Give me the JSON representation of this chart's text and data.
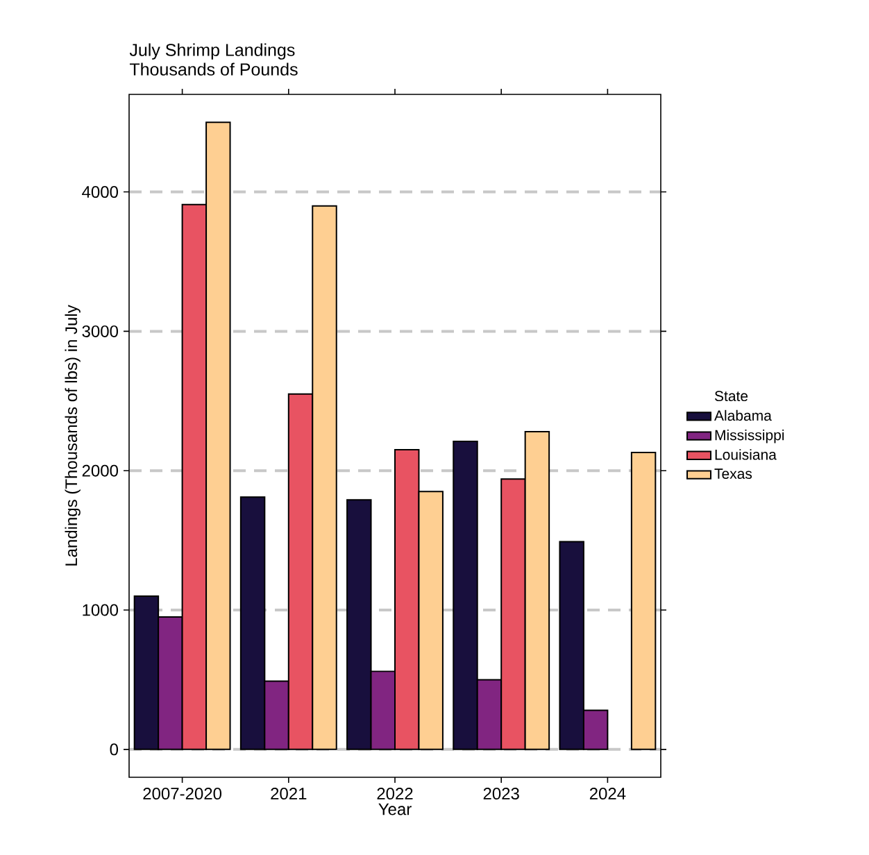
{
  "chart_data": {
    "type": "bar",
    "title": "July Shrimp Landings",
    "subtitle": "Thousands of Pounds",
    "xlabel": "Year",
    "ylabel": "Landings (Thousands of lbs) in July",
    "legend_title": "State",
    "categories": [
      "2007-2020",
      "2021",
      "2022",
      "2023",
      "2024"
    ],
    "series": [
      {
        "name": "Alabama",
        "color": "#180f3d",
        "values": [
          1100,
          1810,
          1790,
          2210,
          1490
        ]
      },
      {
        "name": "Mississippi",
        "color": "#812581",
        "values": [
          950,
          490,
          560,
          500,
          280
        ]
      },
      {
        "name": "Louisiana",
        "color": "#e85362",
        "values": [
          3910,
          2550,
          2150,
          1940,
          null
        ]
      },
      {
        "name": "Texas",
        "color": "#fecf92",
        "values": [
          4500,
          3900,
          1850,
          2280,
          2130
        ]
      }
    ],
    "ylim": [
      -200,
      4700
    ],
    "yticks": [
      0,
      1000,
      2000,
      3000,
      4000
    ],
    "grid": "y",
    "legend": "right"
  }
}
